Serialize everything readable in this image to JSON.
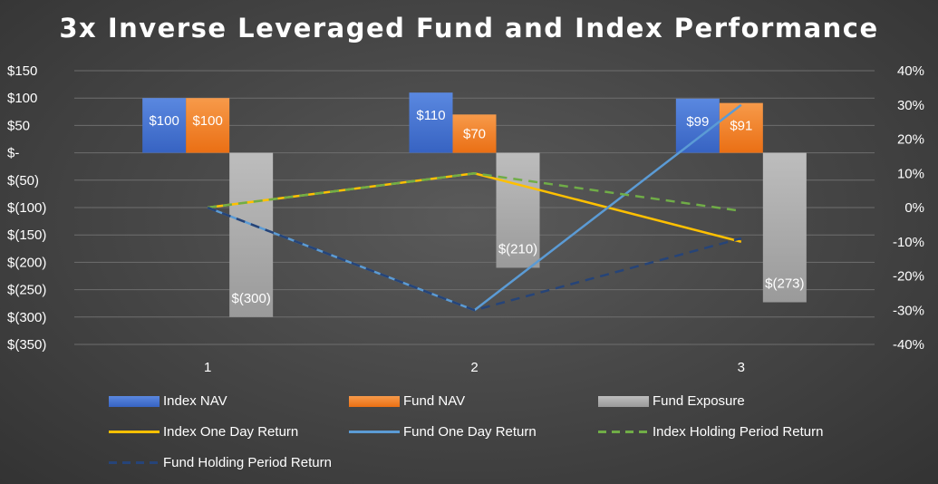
{
  "chart_data": {
    "type": "bar",
    "title": "3x Inverse Leveraged Fund and Index Performance",
    "categories": [
      "1",
      "2",
      "3"
    ],
    "bar_series": [
      {
        "name": "Index NAV",
        "values": [
          100,
          110,
          99
        ],
        "labels": [
          "$100",
          "$110",
          "$99"
        ],
        "color": "#3f6fce"
      },
      {
        "name": "Fund NAV",
        "values": [
          100,
          70,
          91
        ],
        "labels": [
          "$100",
          "$70",
          "$91"
        ],
        "color": "#f07a22"
      },
      {
        "name": "Fund Exposure",
        "values": [
          -300,
          -210,
          -273
        ],
        "labels": [
          "$(300)",
          "$(210)",
          "$(273)"
        ],
        "color": "#a5a5a5"
      }
    ],
    "line_series": [
      {
        "name": "Index One Day Return",
        "values": [
          0,
          0.1,
          -0.1
        ],
        "color": "#ffc000",
        "dashed": false
      },
      {
        "name": "Fund One Day Return",
        "values": [
          0,
          -0.3,
          0.3
        ],
        "color": "#5b9bd5",
        "dashed": false
      },
      {
        "name": "Index Holding Period Return",
        "values": [
          0,
          0.1,
          -0.01
        ],
        "color": "#70ad47",
        "dashed": true
      },
      {
        "name": "Fund Holding Period Return",
        "values": [
          0,
          -0.3,
          -0.09
        ],
        "color": "#264478",
        "dashed": true
      }
    ],
    "y_left": {
      "min": -350,
      "max": 150,
      "step": 50,
      "tick_labels": [
        "$150",
        "$100",
        "$50",
        "$-",
        "$(50)",
        "$(100)",
        "$(150)",
        "$(200)",
        "$(250)",
        "$(300)",
        "$(350)"
      ]
    },
    "y_right": {
      "min": -0.4,
      "max": 0.4,
      "step": 0.1,
      "tick_labels": [
        "40%",
        "30%",
        "20%",
        "10%",
        "0%",
        "-10%",
        "-20%",
        "-30%",
        "-40%"
      ]
    },
    "grid": true,
    "legend_position": "bottom"
  }
}
